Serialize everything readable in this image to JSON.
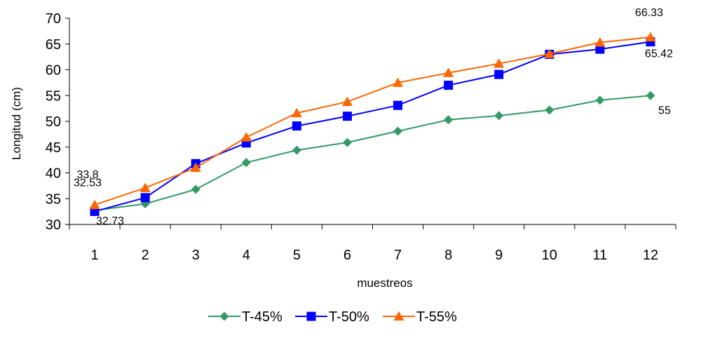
{
  "chart_data": {
    "type": "line",
    "title": "",
    "xlabel": "muestreos",
    "ylabel": "Longitud (cm)",
    "categories": [
      "1",
      "2",
      "3",
      "4",
      "5",
      "6",
      "7",
      "8",
      "9",
      "10",
      "11",
      "12"
    ],
    "ylim": [
      30,
      70
    ],
    "yticks": [
      30,
      35,
      40,
      45,
      50,
      55,
      60,
      65,
      70
    ],
    "grid": false,
    "legend_position": "bottom",
    "series": [
      {
        "name": "T-45%",
        "color": "#339966",
        "marker": "diamond",
        "values": [
          32.73,
          34.0,
          36.8,
          42.0,
          44.4,
          45.9,
          48.1,
          50.3,
          51.1,
          52.2,
          54.1,
          55.0
        ]
      },
      {
        "name": "T-50%",
        "color": "#0000FF",
        "marker": "square",
        "values": [
          32.53,
          35.2,
          41.8,
          45.8,
          49.1,
          51.0,
          53.1,
          57.0,
          59.1,
          63.0,
          64.0,
          65.42
        ]
      },
      {
        "name": "T-55%",
        "color": "#FF6600",
        "marker": "triangle",
        "values": [
          33.8,
          37.1,
          41.0,
          46.9,
          51.6,
          53.8,
          57.5,
          59.4,
          61.2,
          63.1,
          65.3,
          66.33
        ]
      }
    ],
    "annotations": [
      {
        "text": "33.8",
        "series": 2,
        "index": 0
      },
      {
        "text": "32.53",
        "series": 1,
        "index": 0
      },
      {
        "text": "32.73",
        "series": 0,
        "index": 0
      },
      {
        "text": "66.33",
        "series": 2,
        "index": 11
      },
      {
        "text": "65.42",
        "series": 1,
        "index": 11
      },
      {
        "text": "55",
        "series": 0,
        "index": 11
      }
    ]
  }
}
